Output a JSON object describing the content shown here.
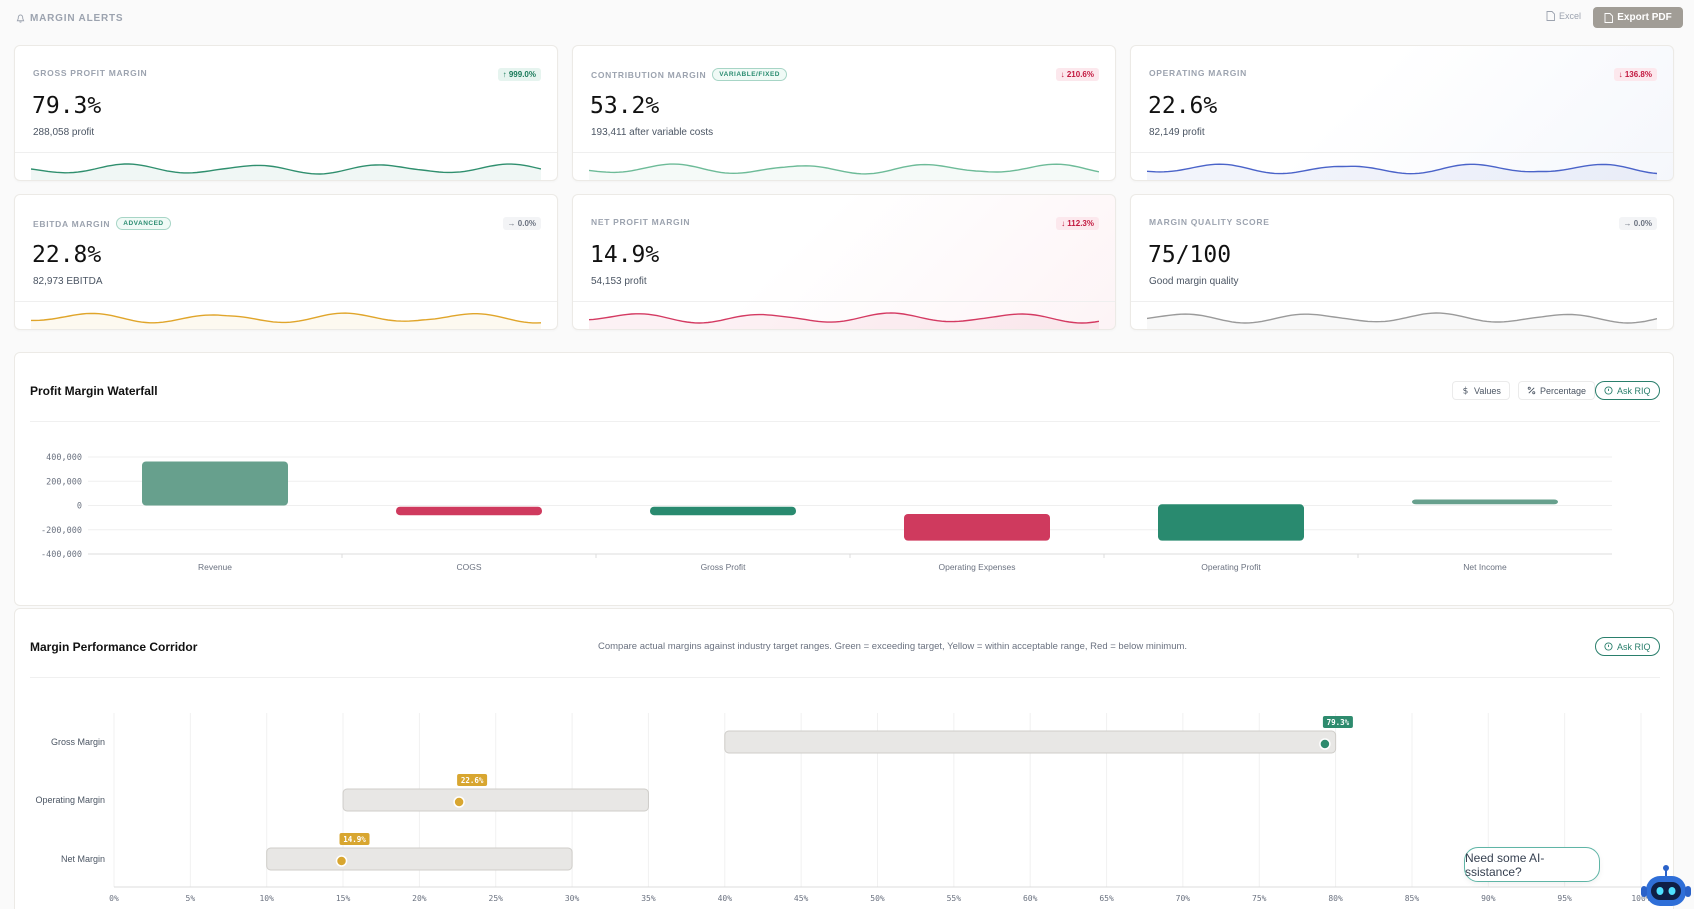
{
  "header": {
    "title": "MARGIN ALERTS",
    "excel_label": "Excel",
    "pdf_label": "Export PDF"
  },
  "cards": [
    {
      "label": "GROSS PROFIT MARGIN",
      "tag": "",
      "value": "79.3%",
      "sub": "288,058 profit",
      "change": "999.0%",
      "direction": "up",
      "color": "#2f8f6e"
    },
    {
      "label": "CONTRIBUTION MARGIN",
      "tag": "VARIABLE/FIXED",
      "value": "53.2%",
      "sub": "193,411 after variable costs",
      "change": "210.6%",
      "direction": "down",
      "color": "#6dbb98"
    },
    {
      "label": "OPERATING MARGIN",
      "tag": "",
      "value": "22.6%",
      "sub": "82,149 profit",
      "change": "136.8%",
      "direction": "down",
      "color": "#4a63c9"
    },
    {
      "label": "EBITDA MARGIN",
      "tag": "ADVANCED",
      "value": "22.8%",
      "sub": "82,973 EBITDA",
      "change": "0.0%",
      "direction": "flat",
      "color": "#e0a52a"
    },
    {
      "label": "NET PROFIT MARGIN",
      "tag": "",
      "value": "14.9%",
      "sub": "54,153 profit",
      "change": "112.3%",
      "direction": "down",
      "color": "#d43a62"
    },
    {
      "label": "MARGIN QUALITY SCORE",
      "tag": "",
      "value": "75/100",
      "sub": "Good margin quality",
      "change": "0.0%",
      "direction": "flat",
      "color": "#9a9a9a"
    }
  ],
  "waterfall": {
    "title": "Profit Margin Waterfall",
    "values_label": "Values",
    "percentage_label": "Percentage",
    "ask_label": "Ask RIQ"
  },
  "corridor": {
    "title": "Margin Performance Corridor",
    "description": "Compare actual margins against industry target ranges. Green = exceeding target, Yellow = within acceptable range, Red = below minimum.",
    "ask_label": "Ask RIQ"
  },
  "chat": {
    "bubble": "Need some AI-ssistance?"
  },
  "chart_data": [
    {
      "type": "bar",
      "subtype": "waterfall",
      "categories": [
        "Revenue",
        "COGS",
        "Gross Profit",
        "Operating Expenses",
        "Operating Profit",
        "Net Income"
      ],
      "ranges": [
        [
          0,
          363000
        ],
        [
          -80000,
          -10000
        ],
        [
          -80000,
          -10000
        ],
        [
          -290000,
          -70000
        ],
        [
          -290000,
          10000
        ],
        [
          10000,
          50000
        ]
      ],
      "colors": [
        "#67a08d",
        "#cf3a5e",
        "#298a6f",
        "#cf3a5e",
        "#298a6f",
        "#67a08d"
      ],
      "yticks": [
        "400,000",
        "200,000",
        "0",
        "-200,000",
        "-400,000"
      ],
      "ylim": [
        -400000,
        400000
      ],
      "grid": true
    },
    {
      "type": "bar",
      "subtype": "range-corridor",
      "categories": [
        "Gross Margin",
        "Operating Margin",
        "Net Margin"
      ],
      "ranges": [
        [
          40,
          80
        ],
        [
          15,
          35
        ],
        [
          10,
          30
        ]
      ],
      "actual": [
        79.3,
        22.6,
        14.9
      ],
      "actual_labels": [
        "79.3%",
        "22.6%",
        "14.9%"
      ],
      "status_colors": [
        "#2e8b6e",
        "#d8a630",
        "#d8a630"
      ],
      "xticks": [
        "0%",
        "5%",
        "10%",
        "15%",
        "20%",
        "25%",
        "30%",
        "35%",
        "40%",
        "45%",
        "50%",
        "55%",
        "60%",
        "65%",
        "70%",
        "75%",
        "80%",
        "85%",
        "90%",
        "95%",
        "100%"
      ],
      "xlim": [
        0,
        100
      ],
      "grid": true
    }
  ]
}
